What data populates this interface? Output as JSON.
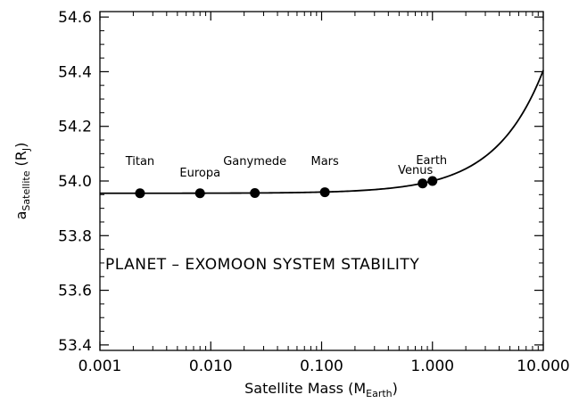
{
  "chart_data": {
    "type": "line",
    "xscale": "log",
    "xlim": [
      0.001,
      10.0
    ],
    "ylim": [
      53.38,
      54.62
    ],
    "xticks": [
      {
        "value": 0.001,
        "label": "0.001"
      },
      {
        "value": 0.01,
        "label": "0.010"
      },
      {
        "value": 0.1,
        "label": "0.100"
      },
      {
        "value": 1.0,
        "label": "1.000"
      },
      {
        "value": 10.0,
        "label": "10.000"
      }
    ],
    "yticks": [
      {
        "value": 53.4,
        "label": "53.4"
      },
      {
        "value": 53.6,
        "label": "53.6"
      },
      {
        "value": 53.8,
        "label": "53.8"
      },
      {
        "value": 54.0,
        "label": "54.0"
      },
      {
        "value": 54.2,
        "label": "54.2"
      },
      {
        "value": 54.4,
        "label": "54.4"
      },
      {
        "value": 54.6,
        "label": "54.6"
      }
    ],
    "xlabel": {
      "main": "Satellite Mass (M",
      "sub": "Earth",
      "end": ")"
    },
    "ylabel": {
      "main": "a",
      "sub": "Satellite",
      "rest": " (R",
      "sub2": "J",
      "end": ")"
    },
    "annotation": "PLANET – EXOMOON SYSTEM STABILITY",
    "curve": {
      "base": 53.955,
      "coef": 0.045,
      "x": [
        0.001,
        0.002,
        0.005,
        0.01,
        0.02,
        0.05,
        0.1,
        0.2,
        0.5,
        1.0,
        2.0,
        3.0,
        4.0,
        5.0,
        6.0,
        7.0,
        8.0,
        9.0,
        10.0
      ],
      "y": [
        53.955,
        53.955,
        53.955,
        53.955,
        53.956,
        53.957,
        53.959,
        53.964,
        53.978,
        54.0,
        54.045,
        54.09,
        54.135,
        54.18,
        54.225,
        54.27,
        54.315,
        54.36,
        54.405
      ]
    },
    "points": [
      {
        "name": "Titan",
        "x": 0.0023,
        "y": 53.955
      },
      {
        "name": "Europa",
        "x": 0.008,
        "y": 53.955
      },
      {
        "name": "Ganymede",
        "x": 0.025,
        "y": 53.956
      },
      {
        "name": "Mars",
        "x": 0.107,
        "y": 53.959
      },
      {
        "name": "Venus",
        "x": 0.815,
        "y": 53.991
      },
      {
        "name": "Earth",
        "x": 1.0,
        "y": 54.0
      }
    ],
    "grid": false,
    "colors": {
      "line": "#000000",
      "marker": "#000000",
      "background": "#ffffff"
    }
  }
}
